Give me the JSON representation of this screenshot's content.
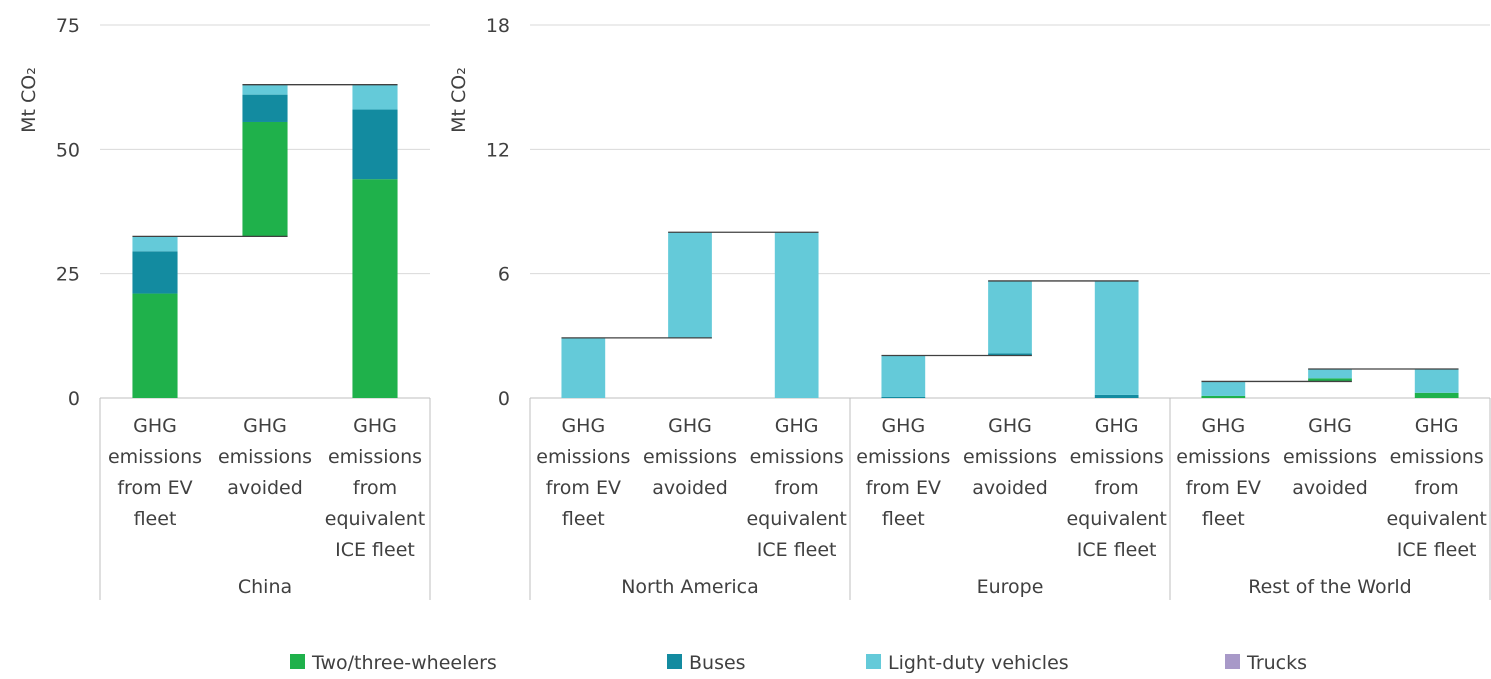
{
  "chart_data": {
    "type": "waterfall",
    "series": [
      {
        "name": "Two/three-wheelers",
        "color": "#1fb14b"
      },
      {
        "name": "Buses",
        "color": "#138ba0"
      },
      {
        "name": "Light-duty vehicles",
        "color": "#64cad9"
      },
      {
        "name": "Trucks",
        "color": "#a899c8"
      }
    ],
    "panels": [
      {
        "ylabel": "Mt CO₂",
        "ylim": [
          0,
          75
        ],
        "yticks": [
          0,
          25,
          50,
          75
        ],
        "groups": [
          {
            "name": "China",
            "categories": [
              "GHG emissions from EV fleet",
              "GHG emissions avoided",
              "GHG emissions from equivalent ICE fleet"
            ]
          }
        ],
        "values": [
          [
            21,
            23,
            44
          ],
          [
            8.5,
            5.5,
            14
          ],
          [
            3,
            2,
            5
          ],
          [
            0,
            0,
            0
          ]
        ]
      },
      {
        "ylabel": "Mt CO₂",
        "ylim": [
          0,
          18
        ],
        "yticks": [
          0,
          6,
          12,
          18
        ],
        "groups": [
          {
            "name": "North America",
            "categories": [
              "GHG emissions from EV fleet",
              "GHG emissions avoided",
              "GHG emissions from equivalent ICE fleet"
            ]
          },
          {
            "name": "Europe",
            "categories": [
              "GHG emissions from EV fleet",
              "GHG emissions avoided",
              "GHG emissions from equivalent ICE fleet"
            ]
          },
          {
            "name": "Rest of the World",
            "categories": [
              "GHG emissions from EV fleet",
              "GHG emissions avoided",
              "GHG emissions from equivalent ICE fleet"
            ]
          }
        ],
        "values": [
          [
            0,
            0,
            0,
            0,
            0,
            0,
            0.1,
            0.15,
            0.25
          ],
          [
            0,
            0,
            0,
            0.05,
            0.1,
            0.15,
            0,
            0,
            0
          ],
          [
            2.9,
            5.1,
            8.0,
            2.0,
            3.5,
            5.5,
            0.7,
            0.45,
            1.15
          ],
          [
            0,
            0,
            0,
            0,
            0,
            0,
            0,
            0,
            0
          ]
        ]
      }
    ]
  }
}
